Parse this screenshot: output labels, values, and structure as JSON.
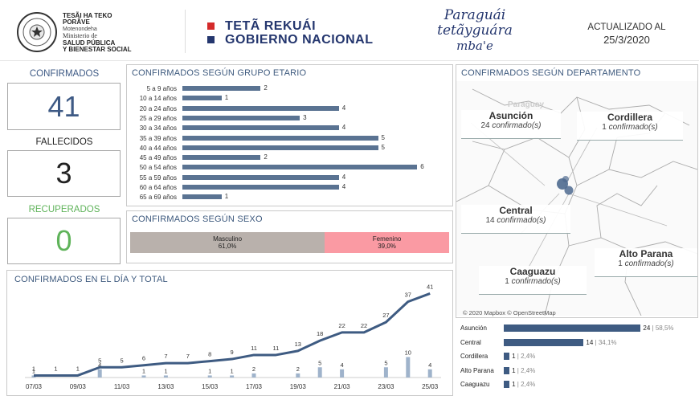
{
  "header": {
    "logo_line1": "TESÃI HA TEKO",
    "logo_line2": "PORÃVE",
    "logo_line3": "Motenondeha",
    "logo_line4": "Ministerio de",
    "logo_line5": "SALUD PÚBLICA",
    "logo_line6": "Y BIENESTAR SOCIAL",
    "seal_text": "REPÚBLICA DEL PARAGUAY",
    "brand_line1": "TETÃ REKUÁI",
    "brand_line2": "GOBIERNO NACIONAL",
    "script_line1": "Paraguái",
    "script_line2": "tetãyguára",
    "script_line3": "mba'e",
    "updated_label": "ACTUALIZADO AL",
    "updated_date": "25/3/2020",
    "colors": {
      "red": "#d42a2a",
      "navy": "#24366e"
    }
  },
  "stats": {
    "confirmed_label": "CONFIRMADOS",
    "confirmed_value": "41",
    "deaths_label": "FALLECIDOS",
    "deaths_value": "3",
    "recovered_label": "RECUPERADOS",
    "recovered_value": "0",
    "colors": {
      "confirmed": "#3e5a85",
      "recovered": "#5fb35a",
      "label_blue": "#3e5a85",
      "label_green": "#5fb35a"
    }
  },
  "age_panel": {
    "title": "CONFIRMADOS SEGÚN GRUPO ETARIO"
  },
  "sex_panel": {
    "title": "CONFIRMADOS SEGÚN SEXO",
    "male_label": "Masculino",
    "male_pct": "61,0%",
    "female_label": "Femenino",
    "female_pct": "39,0%",
    "male_share": 0.61,
    "colors": {
      "male": "#b9b1ac",
      "female": "#fa9aa3"
    }
  },
  "daily_panel": {
    "title": "CONFIRMADOS EN EL DÍA Y TOTAL"
  },
  "map_panel": {
    "title": "CONFIRMADOS SEGÚN DEPARTAMENTO",
    "attribution": "© 2020 Mapbox © OpenStreetMap",
    "ghost_label": "Paraguay",
    "labels": [
      {
        "name": "Asunción",
        "count": "24",
        "unit": "confirmado(s)"
      },
      {
        "name": "Cordillera",
        "count": "1",
        "unit": "confirmado(s)"
      },
      {
        "name": "Central",
        "count": "14",
        "unit": "confirmado(s)"
      },
      {
        "name": "Alto Parana",
        "count": "1",
        "unit": "confirmado(s)"
      },
      {
        "name": "Caaguazu",
        "count": "1",
        "unit": "confirmado(s)"
      }
    ]
  },
  "chart_data": [
    {
      "type": "bar",
      "orientation": "horizontal",
      "title": "CONFIRMADOS SEGÚN GRUPO ETARIO",
      "categories": [
        "5 a 9 años",
        "10 a 14 años",
        "20 a 24 años",
        "25 a 29 años",
        "30 a 34 años",
        "35 a 39 años",
        "40 a 44 años",
        "45 a 49 años",
        "50 a 54 años",
        "55 a 59 años",
        "60 a 64 años",
        "65 a 69 años"
      ],
      "values": [
        2,
        1,
        4,
        3,
        4,
        5,
        5,
        2,
        6,
        4,
        4,
        1
      ],
      "color": "#5a7392"
    },
    {
      "type": "line",
      "title": "CONFIRMADOS EN EL DÍA Y TOTAL",
      "x": [
        "07/03",
        "08/03",
        "09/03",
        "10/03",
        "11/03",
        "12/03",
        "13/03",
        "14/03",
        "15/03",
        "16/03",
        "17/03",
        "18/03",
        "19/03",
        "20/03",
        "21/03",
        "22/03",
        "23/03",
        "24/03",
        "25/03"
      ],
      "xticks": [
        "07/03",
        "09/03",
        "11/03",
        "13/03",
        "15/03",
        "17/03",
        "19/03",
        "21/03",
        "23/03",
        "25/03"
      ],
      "series": [
        {
          "values": [
            1,
            1,
            1,
            5,
            5,
            6,
            7,
            7,
            8,
            9,
            11,
            11,
            13,
            18,
            22,
            22,
            27,
            37,
            41
          ],
          "kind": "line",
          "color": "#3e5b82"
        },
        {
          "values": [
            1,
            0,
            0,
            4,
            0,
            1,
            1,
            0,
            1,
            1,
            2,
            0,
            2,
            5,
            4,
            0,
            5,
            10,
            4
          ],
          "kind": "bar",
          "color": "#9fb3cb"
        }
      ]
    },
    {
      "type": "bar",
      "orientation": "horizontal",
      "title": "CONFIRMADOS SEGÚN DEPARTAMENTO",
      "categories": [
        "Asunción",
        "Central",
        "Cordillera",
        "Alto Parana",
        "Caaguazu"
      ],
      "values": [
        24,
        14,
        1,
        1,
        1
      ],
      "percent_labels": [
        "58,5%",
        "34,1%",
        "2,4%",
        "2,4%",
        "2,4%"
      ],
      "color": "#3e5b82"
    }
  ]
}
